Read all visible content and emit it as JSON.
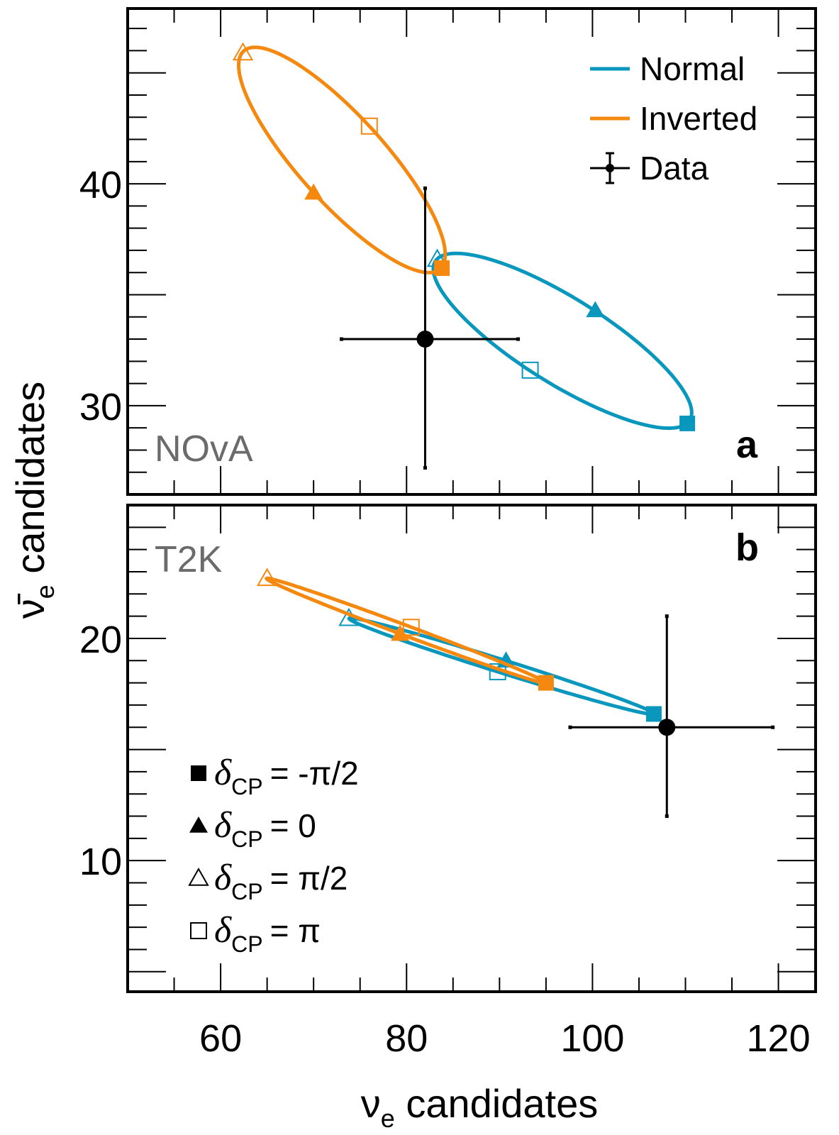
{
  "chart_data": {
    "type": "scatter",
    "xlabel_main": "ν",
    "xlabel_sub": "e",
    "xlabel_rest": " candidates",
    "ylabel_main": "ν̄",
    "ylabel_sub": "e",
    "ylabel_rest": " candidates",
    "xlim": [
      50,
      124
    ],
    "xticks": [
      60,
      80,
      100,
      120
    ],
    "x_minor_step": 5,
    "colors": {
      "normal": "#0a97bd",
      "inverted": "#f5880f",
      "data": "#000000",
      "experiment_label": "#6b6b6b"
    },
    "legend_hierarchy": [
      {
        "key": "normal",
        "label": "Normal"
      },
      {
        "key": "inverted",
        "label": "Inverted"
      },
      {
        "key": "data",
        "label": "Data"
      }
    ],
    "legend_markers": [
      {
        "marker": "filled-square",
        "symbol": "δ",
        "sub": "CP",
        "value": "= -π/2"
      },
      {
        "marker": "filled-triangle",
        "symbol": "δ",
        "sub": "CP",
        "value": "= 0"
      },
      {
        "marker": "open-triangle",
        "symbol": "δ",
        "sub": "CP",
        "value": "= π/2"
      },
      {
        "marker": "open-square",
        "symbol": "δ",
        "sub": "CP",
        "value": "= π"
      }
    ],
    "panels": [
      {
        "id": "a",
        "panel_letter": "a",
        "experiment": "NOvA",
        "ylim": [
          26,
          47.9
        ],
        "yticks": [
          30,
          40
        ],
        "y_minor_step": 1,
        "data_point": {
          "x": 82,
          "y": 33,
          "x_err": [
            73,
            92
          ],
          "y_err": [
            27.2,
            39.8
          ]
        },
        "series": [
          {
            "key": "normal",
            "name": "Normal",
            "ellipse": {
              "center": [
                96.8,
                32.9
              ],
              "points": {
                "-pi/2": [
                  110.2,
                  29.2
                ],
                "0": [
                  100.3,
                  34.3
                ],
                "pi/2": [
                  83.3,
                  36.6
                ],
                "pi": [
                  93.3,
                  31.6
                ]
              }
            }
          },
          {
            "key": "inverted",
            "name": "Inverted",
            "ellipse": {
              "center": [
                73.1,
                41.0
              ],
              "points": {
                "-pi/2": [
                  83.8,
                  36.2
                ],
                "0": [
                  70.0,
                  39.6
                ],
                "pi/2": [
                  62.4,
                  45.9
                ],
                "pi": [
                  76.0,
                  42.6
                ]
              }
            }
          }
        ]
      },
      {
        "id": "b",
        "panel_letter": "b",
        "experiment": "T2K",
        "ylim": [
          4.1,
          26
        ],
        "yticks": [
          10,
          20
        ],
        "y_minor_step": 1,
        "data_point": {
          "x": 108,
          "y": 16,
          "x_err": [
            97.6,
            119.4
          ],
          "y_err": [
            12,
            21
          ]
        },
        "series": [
          {
            "key": "normal",
            "name": "Normal",
            "ellipse": {
              "center": [
                90.2,
                18.75
              ],
              "points": {
                "-pi/2": [
                  106.6,
                  16.6
                ],
                "0": [
                  90.7,
                  19.0
                ],
                "pi/2": [
                  73.8,
                  20.9
                ],
                "pi": [
                  89.8,
                  18.5
                ]
              }
            }
          },
          {
            "key": "inverted",
            "name": "Inverted",
            "ellipse": {
              "center": [
                80.0,
                20.35
              ],
              "points": {
                "-pi/2": [
                  95.0,
                  18.0
                ],
                "0": [
                  79.3,
                  20.2
                ],
                "pi/2": [
                  65.0,
                  22.7
                ],
                "pi": [
                  80.5,
                  20.5
                ]
              }
            }
          }
        ]
      }
    ]
  }
}
